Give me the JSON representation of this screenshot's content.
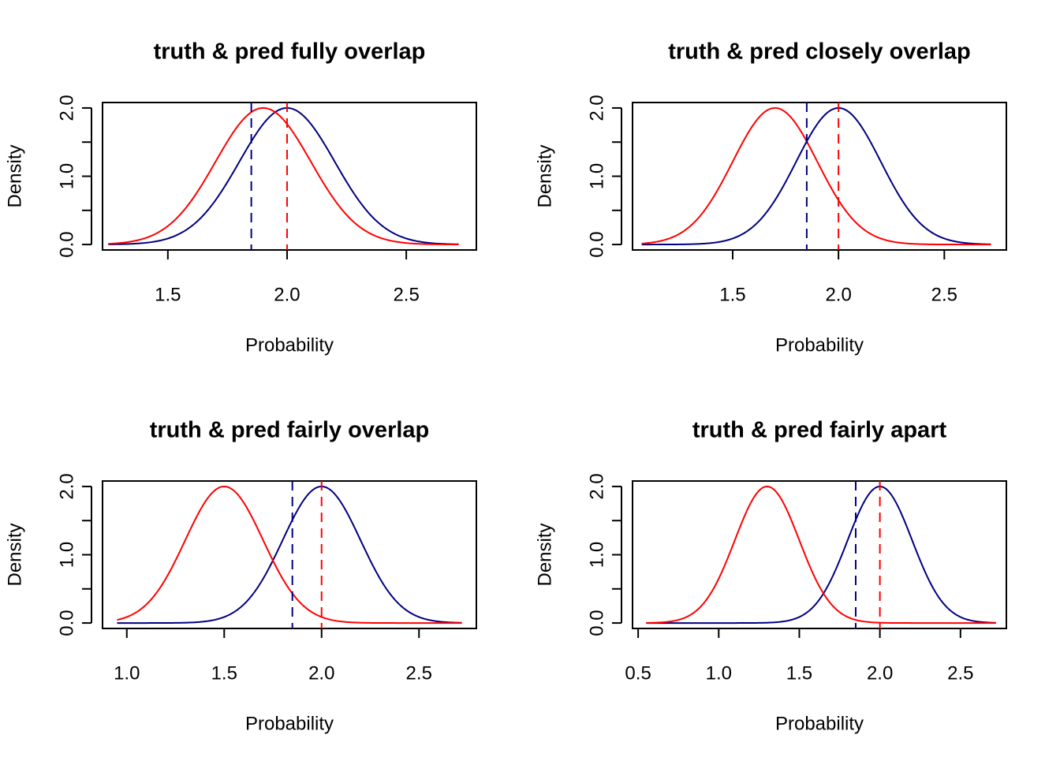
{
  "colors": {
    "truth": "#000080",
    "pred": "#ff0000",
    "axis": "#000000",
    "background": "#ffffff"
  },
  "chart_data": [
    {
      "type": "line",
      "title": "truth & pred fully overlap",
      "xlabel": "Probability",
      "ylabel": "Density",
      "xlim": [
        1.226,
        2.794
      ],
      "ylim": [
        -0.08,
        2.08
      ],
      "xticks": [
        1.5,
        2.0,
        2.5
      ],
      "xtick_labels": [
        "1.5",
        "2.0",
        "2.5"
      ],
      "yticks": [
        0.0,
        0.5,
        1.0,
        1.5,
        2.0
      ],
      "ytick_labels": [
        "0.0",
        "",
        "1.0",
        "",
        "2.0"
      ],
      "grid": false,
      "series": [
        {
          "color": "#000080",
          "curve": "normal",
          "mean": 2.0,
          "sd": 0.2,
          "peak": 2.0,
          "x_range": [
            1.25,
            2.72
          ]
        },
        {
          "color": "#ff0000",
          "curve": "normal",
          "mean": 1.9,
          "sd": 0.2,
          "peak": 2.0,
          "x_range": [
            1.25,
            2.72
          ]
        }
      ],
      "vlines": [
        {
          "x": 1.85,
          "color": "#000080",
          "style": "dashed"
        },
        {
          "x": 2.0,
          "color": "#ff0000",
          "style": "dashed"
        }
      ]
    },
    {
      "type": "line",
      "title": "truth & pred closely overlap",
      "xlabel": "Probability",
      "ylabel": "Density",
      "xlimT": null,
      "xlim": [
        1.0268,
        2.7932
      ],
      "ylim": [
        -0.08,
        2.08
      ],
      "xticks": [
        1.5,
        2.0,
        2.5
      ],
      "xtick_labels": [
        "1.5",
        "2.0",
        "2.5"
      ],
      "yticks": [
        0.0,
        0.5,
        1.0,
        1.5,
        2.0
      ],
      "ytick_labels": [
        "0.0",
        "",
        "1.0",
        "",
        "2.0"
      ],
      "grid": false,
      "series": [
        {
          "color": "#000080",
          "curve": "normal",
          "mean": 2.0,
          "sd": 0.2,
          "peak": 2.0,
          "x_range": [
            1.07,
            2.72
          ]
        },
        {
          "color": "#ff0000",
          "curve": "normal",
          "mean": 1.7,
          "sd": 0.2,
          "peak": 2.0,
          "x_range": [
            1.07,
            2.72
          ]
        }
      ],
      "vlines": [
        {
          "x": 1.85,
          "color": "#000080",
          "style": "dashed"
        },
        {
          "x": 2.0,
          "color": "#ff0000",
          "style": "dashed"
        }
      ]
    },
    {
      "type": "line",
      "title": "truth & pred fairly overlap",
      "xlabel": "Probability",
      "ylabel": "Density",
      "xlim": [
        0.8754,
        2.7946
      ],
      "ylim": [
        -0.08,
        2.08
      ],
      "xticks": [
        1.0,
        1.5,
        2.0,
        2.5
      ],
      "xtick_labels": [
        "1.0",
        "1.5",
        "2.0",
        "2.5"
      ],
      "yticks": [
        0.0,
        0.5,
        1.0,
        1.5,
        2.0
      ],
      "ytick_labels": [
        "0.0",
        "",
        "1.0",
        "",
        "2.0"
      ],
      "grid": false,
      "series": [
        {
          "color": "#000080",
          "curve": "normal",
          "mean": 2.0,
          "sd": 0.2,
          "peak": 2.0,
          "x_range": [
            0.95,
            2.72
          ]
        },
        {
          "color": "#ff0000",
          "curve": "normal",
          "mean": 1.5,
          "sd": 0.2,
          "peak": 2.0,
          "x_range": [
            0.95,
            2.72
          ]
        }
      ],
      "vlines": [
        {
          "x": 1.85,
          "color": "#000080",
          "style": "dashed"
        },
        {
          "x": 2.0,
          "color": "#ff0000",
          "style": "dashed"
        }
      ]
    },
    {
      "type": "line",
      "title": "truth & pred fairly apart",
      "xlabel": "Probability",
      "ylabel": "Density",
      "xlim": [
        0.4652,
        2.7848
      ],
      "ylim": [
        -0.08,
        2.08
      ],
      "xticks": [
        0.5,
        1.0,
        1.5,
        2.0,
        2.5
      ],
      "xtick_labels": [
        "0.5",
        "1.0",
        "1.5",
        "2.0",
        "2.5"
      ],
      "yticks": [
        0.0,
        0.5,
        1.0,
        1.5,
        2.0
      ],
      "ytick_labels": [
        "0.0",
        "",
        "1.0",
        "",
        "2.0"
      ],
      "grid": false,
      "series": [
        {
          "color": "#000080",
          "curve": "normal",
          "mean": 2.0,
          "sd": 0.2,
          "peak": 2.0,
          "x_range": [
            0.55,
            2.72
          ]
        },
        {
          "color": "#ff0000",
          "curve": "normal",
          "mean": 1.3,
          "sd": 0.2,
          "peak": 2.0,
          "x_range": [
            0.55,
            2.72
          ]
        }
      ],
      "vlines": [
        {
          "x": 1.85,
          "color": "#000080",
          "style": "dashed"
        },
        {
          "x": 2.0,
          "color": "#ff0000",
          "style": "dashed"
        }
      ]
    }
  ]
}
